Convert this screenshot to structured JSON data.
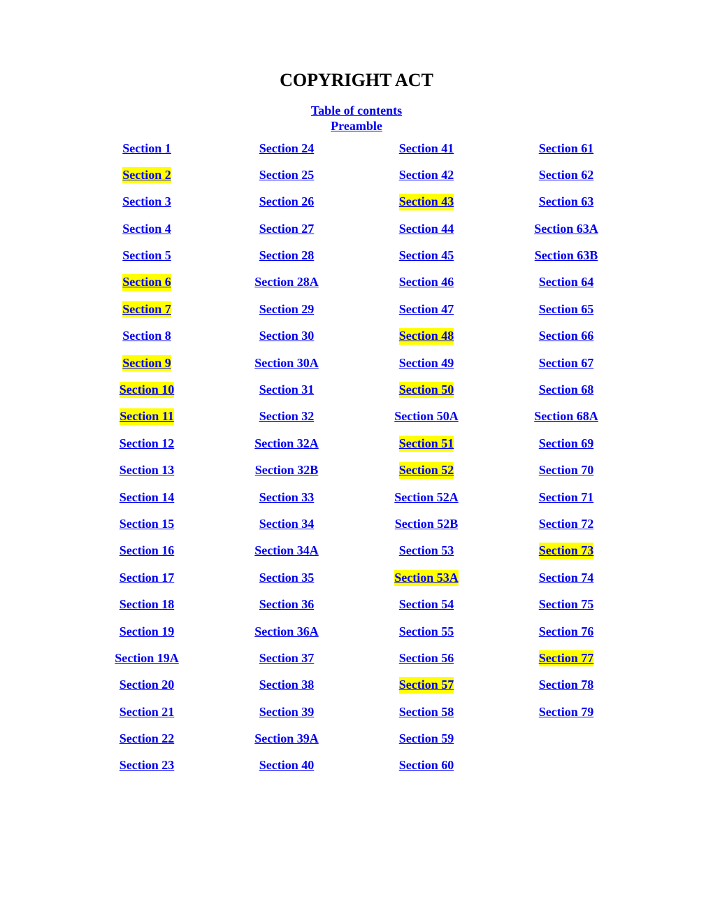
{
  "title": "COPYRIGHT ACT",
  "toc_label": "Table of contents",
  "preamble_label": "Preamble",
  "link_color": "#0000ee",
  "highlight_color": "#ffff00",
  "background_color": "#ffffff",
  "text_color": "#000000",
  "font_family": "Times New Roman",
  "title_fontsize": 26,
  "link_fontsize": 18,
  "columns": [
    {
      "items": [
        {
          "label": "Section 1",
          "highlighted": false
        },
        {
          "label": "Section 2",
          "highlighted": true
        },
        {
          "label": "Section 3",
          "highlighted": false
        },
        {
          "label": "Section 4",
          "highlighted": false
        },
        {
          "label": "Section 5",
          "highlighted": false
        },
        {
          "label": "Section 6",
          "highlighted": true
        },
        {
          "label": "Section 7",
          "highlighted": true
        },
        {
          "label": "Section 8",
          "highlighted": false
        },
        {
          "label": "Section 9",
          "highlighted": true
        },
        {
          "label": "Section 10",
          "highlighted": true
        },
        {
          "label": "Section 11",
          "highlighted": true
        },
        {
          "label": "Section 12",
          "highlighted": false
        },
        {
          "label": "Section 13",
          "highlighted": false
        },
        {
          "label": "Section 14",
          "highlighted": false
        },
        {
          "label": "Section 15",
          "highlighted": false
        },
        {
          "label": "Section 16",
          "highlighted": false
        },
        {
          "label": "Section 17",
          "highlighted": false
        },
        {
          "label": "Section 18",
          "highlighted": false
        },
        {
          "label": "Section 19",
          "highlighted": false
        },
        {
          "label": "Section 19A",
          "highlighted": false
        },
        {
          "label": "Section 20",
          "highlighted": false
        },
        {
          "label": "Section 21",
          "highlighted": false
        },
        {
          "label": "Section 22",
          "highlighted": false
        },
        {
          "label": "Section 23",
          "highlighted": false
        }
      ]
    },
    {
      "items": [
        {
          "label": "Section 24",
          "highlighted": false
        },
        {
          "label": "Section 25",
          "highlighted": false
        },
        {
          "label": "Section 26",
          "highlighted": false
        },
        {
          "label": "Section 27",
          "highlighted": false
        },
        {
          "label": "Section 28",
          "highlighted": false
        },
        {
          "label": "Section 28A",
          "highlighted": false
        },
        {
          "label": "Section 29",
          "highlighted": false
        },
        {
          "label": "Section 30",
          "highlighted": false
        },
        {
          "label": "Section 30A",
          "highlighted": false
        },
        {
          "label": "Section 31",
          "highlighted": false
        },
        {
          "label": "Section 32",
          "highlighted": false
        },
        {
          "label": "Section 32A",
          "highlighted": false
        },
        {
          "label": "Section 32B",
          "highlighted": false
        },
        {
          "label": "Section 33",
          "highlighted": false
        },
        {
          "label": "Section 34",
          "highlighted": false
        },
        {
          "label": "Section 34A",
          "highlighted": false
        },
        {
          "label": "Section 35",
          "highlighted": false
        },
        {
          "label": "Section 36",
          "highlighted": false
        },
        {
          "label": "Section 36A",
          "highlighted": false
        },
        {
          "label": "Section 37",
          "highlighted": false
        },
        {
          "label": "Section 38",
          "highlighted": false
        },
        {
          "label": "Section 39",
          "highlighted": false
        },
        {
          "label": "Section 39A",
          "highlighted": false
        },
        {
          "label": "Section 40",
          "highlighted": false
        }
      ]
    },
    {
      "items": [
        {
          "label": "Section 41",
          "highlighted": false
        },
        {
          "label": "Section 42",
          "highlighted": false
        },
        {
          "label": "Section 43",
          "highlighted": true
        },
        {
          "label": "Section 44",
          "highlighted": false
        },
        {
          "label": "Section 45",
          "highlighted": false
        },
        {
          "label": "Section 46",
          "highlighted": false
        },
        {
          "label": "Section 47",
          "highlighted": false
        },
        {
          "label": "Section 48",
          "highlighted": true
        },
        {
          "label": "Section 49",
          "highlighted": false
        },
        {
          "label": "Section 50",
          "highlighted": true
        },
        {
          "label": "Section 50A",
          "highlighted": false
        },
        {
          "label": "Section 51",
          "highlighted": true
        },
        {
          "label": "Section 52",
          "highlighted": true
        },
        {
          "label": "Section 52A",
          "highlighted": false
        },
        {
          "label": "Section 52B",
          "highlighted": false
        },
        {
          "label": "Section 53",
          "highlighted": false
        },
        {
          "label": "Section 53A",
          "highlighted": true
        },
        {
          "label": "Section 54",
          "highlighted": false
        },
        {
          "label": "Section 55",
          "highlighted": false
        },
        {
          "label": "Section 56",
          "highlighted": false
        },
        {
          "label": "Section 57",
          "highlighted": true
        },
        {
          "label": "Section 58",
          "highlighted": false
        },
        {
          "label": "Section 59",
          "highlighted": false
        },
        {
          "label": "Section 60",
          "highlighted": false
        }
      ]
    },
    {
      "items": [
        {
          "label": "Section 61",
          "highlighted": false
        },
        {
          "label": "Section 62",
          "highlighted": false
        },
        {
          "label": "Section 63",
          "highlighted": false
        },
        {
          "label": "Section 63A",
          "highlighted": false
        },
        {
          "label": "Section 63B",
          "highlighted": false
        },
        {
          "label": "Section 64",
          "highlighted": false
        },
        {
          "label": "Section 65",
          "highlighted": false
        },
        {
          "label": "Section 66",
          "highlighted": false
        },
        {
          "label": "Section 67",
          "highlighted": false
        },
        {
          "label": "Section 68",
          "highlighted": false
        },
        {
          "label": "Section 68A",
          "highlighted": false
        },
        {
          "label": "Section 69",
          "highlighted": false
        },
        {
          "label": "Section 70",
          "highlighted": false
        },
        {
          "label": "Section 71",
          "highlighted": false
        },
        {
          "label": "Section 72",
          "highlighted": false
        },
        {
          "label": "Section 73",
          "highlighted": true
        },
        {
          "label": "Section 74",
          "highlighted": false
        },
        {
          "label": "Section 75",
          "highlighted": false
        },
        {
          "label": "Section 76",
          "highlighted": false
        },
        {
          "label": "Section 77",
          "highlighted": true
        },
        {
          "label": "Section 78",
          "highlighted": false
        },
        {
          "label": "Section 79",
          "highlighted": false
        }
      ]
    }
  ]
}
